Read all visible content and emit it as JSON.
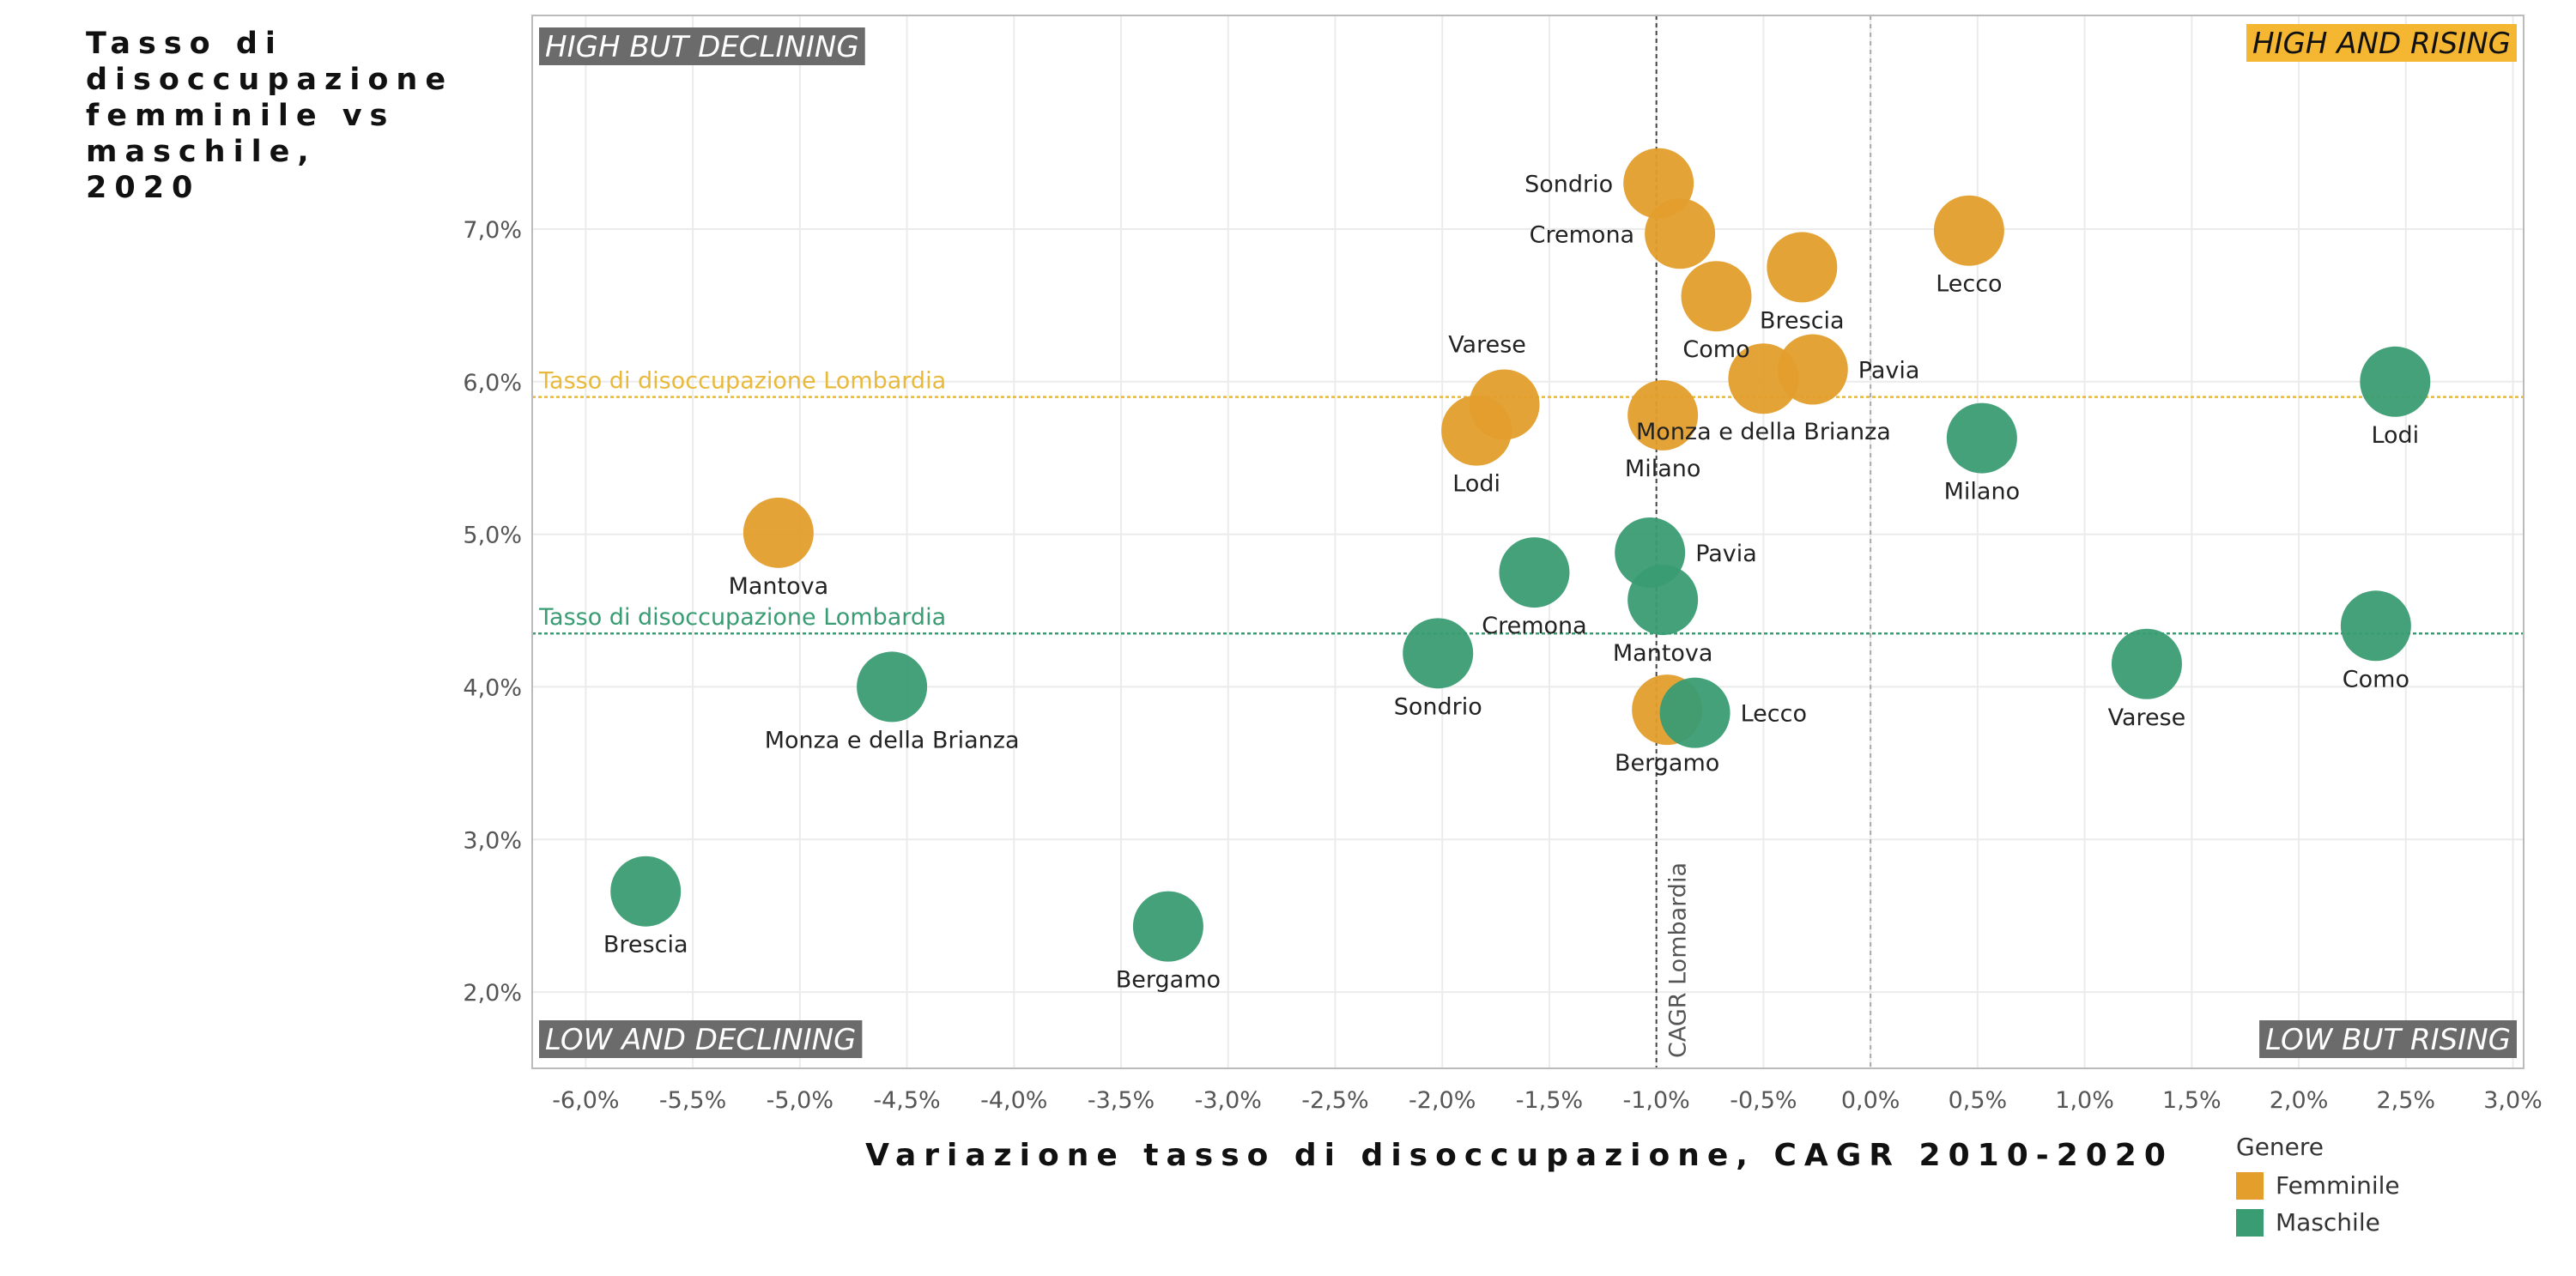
{
  "title": "Tasso di disoccupazione femminile vs maschile, 2020",
  "x_axis_title": "Variazione tasso di disoccupazione, CAGR 2010-2020",
  "legend": {
    "title": "Genere",
    "items": [
      {
        "label": "Femminile",
        "color": "#E39E2C"
      },
      {
        "label": "Maschile",
        "color": "#3A9C73"
      }
    ]
  },
  "quadrants": {
    "top_left": "HIGH BUT DECLINING",
    "top_right": "HIGH AND RISING",
    "bottom_left": "LOW AND DECLINING",
    "bottom_right": "LOW BUT RISING"
  },
  "reference_lines": {
    "female_avg": {
      "label": "Tasso di disoccupazione Lombardia",
      "y": 5.9,
      "color": "#E8B93A"
    },
    "male_avg": {
      "label": "Tasso di disoccupazione Lombardia",
      "y": 4.35,
      "color": "#3A9C73"
    },
    "cagr_lombardia": {
      "label": "CAGR Lombardia",
      "x": -1.0
    },
    "zero": {
      "x": 0.0
    }
  },
  "colors": {
    "femminile": "#E39E2C",
    "maschile": "#3A9C73",
    "quadrant_bg": "#6B6B6B",
    "highlight_bg": "#F5B731"
  },
  "chart_data": {
    "type": "scatter",
    "title": "Tasso di disoccupazione femminile vs maschile, 2020",
    "xlabel": "Variazione tasso di disoccupazione, CAGR 2010-2020",
    "ylabel": "",
    "xlim": [
      -6.25,
      3.05
    ],
    "ylim": [
      1.5,
      8.4
    ],
    "x_ticks": [
      -6.0,
      -5.5,
      -5.0,
      -4.5,
      -4.0,
      -3.5,
      -3.0,
      -2.5,
      -2.0,
      -1.5,
      -1.0,
      -0.5,
      0.0,
      0.5,
      1.0,
      1.5,
      2.0,
      2.5,
      3.0
    ],
    "x_tick_labels": [
      "-6,0%",
      "-5,5%",
      "-5,0%",
      "-4,5%",
      "-4,0%",
      "-3,5%",
      "-3,0%",
      "-2,5%",
      "-2,0%",
      "-1,5%",
      "-1,0%",
      "-0,5%",
      "0,0%",
      "0,5%",
      "1,0%",
      "1,5%",
      "2,0%",
      "2,5%",
      "3,0%"
    ],
    "y_ticks": [
      2.0,
      3.0,
      4.0,
      5.0,
      6.0,
      7.0
    ],
    "y_tick_labels": [
      "2,0%",
      "3,0%",
      "4,0%",
      "5,0%",
      "6,0%",
      "7,0%"
    ],
    "grid": true,
    "legend_position": "bottom-right",
    "series": [
      {
        "name": "Femminile",
        "color": "#E39E2C",
        "points": [
          {
            "label": "Sondrio",
            "x": -0.99,
            "y": 7.3,
            "label_pos": "left"
          },
          {
            "label": "Cremona",
            "x": -0.89,
            "y": 6.97,
            "label_pos": "left"
          },
          {
            "label": "Lecco",
            "x": 0.46,
            "y": 6.99,
            "label_pos": "below"
          },
          {
            "label": "Brescia",
            "x": -0.32,
            "y": 6.75,
            "label_pos": "below"
          },
          {
            "label": "Como",
            "x": -0.72,
            "y": 6.56,
            "label_pos": "below"
          },
          {
            "label": "Varese",
            "x": -1.71,
            "y": 5.85,
            "label_pos": "above"
          },
          {
            "label": "Pavia",
            "x": -0.27,
            "y": 6.08,
            "label_pos": "right"
          },
          {
            "label": "Monza e della Brianza",
            "x": -0.5,
            "y": 6.02,
            "label_pos": "below"
          },
          {
            "label": "Milano",
            "x": -0.97,
            "y": 5.78,
            "label_pos": "below"
          },
          {
            "label": "Lodi",
            "x": -1.84,
            "y": 5.68,
            "label_pos": "below"
          },
          {
            "label": "Mantova",
            "x": -5.1,
            "y": 5.01,
            "label_pos": "below"
          },
          {
            "label": "Bergamo",
            "x": -0.95,
            "y": 3.85,
            "label_pos": "below"
          }
        ]
      },
      {
        "name": "Maschile",
        "color": "#3A9C73",
        "points": [
          {
            "label": "Lodi",
            "x": 2.45,
            "y": 6.0,
            "label_pos": "below"
          },
          {
            "label": "Milano",
            "x": 0.52,
            "y": 5.63,
            "label_pos": "below"
          },
          {
            "label": "Pavia",
            "x": -1.03,
            "y": 4.88,
            "label_pos": "right"
          },
          {
            "label": "Cremona",
            "x": -1.57,
            "y": 4.75,
            "label_pos": "below"
          },
          {
            "label": "Mantova",
            "x": -0.97,
            "y": 4.57,
            "label_pos": "below"
          },
          {
            "label": "Sondrio",
            "x": -2.02,
            "y": 4.22,
            "label_pos": "below"
          },
          {
            "label": "Como",
            "x": 2.36,
            "y": 4.4,
            "label_pos": "below"
          },
          {
            "label": "Varese",
            "x": 1.29,
            "y": 4.15,
            "label_pos": "below"
          },
          {
            "label": "Monza e della Brianza",
            "x": -4.57,
            "y": 4.0,
            "label_pos": "below"
          },
          {
            "label": "Lecco",
            "x": -0.82,
            "y": 3.83,
            "label_pos": "right"
          },
          {
            "label": "Brescia",
            "x": -5.72,
            "y": 2.66,
            "label_pos": "below"
          },
          {
            "label": "Bergamo",
            "x": -3.28,
            "y": 2.43,
            "label_pos": "below"
          }
        ]
      }
    ]
  }
}
